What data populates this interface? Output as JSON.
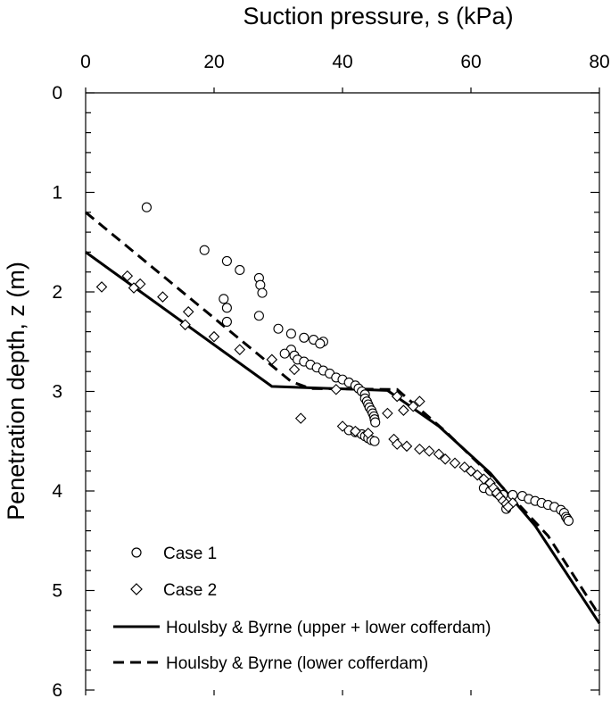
{
  "chart_data": {
    "type": "scatter",
    "title": "",
    "xlabel": "Suction pressure, s (kPa)",
    "ylabel": "Penetration depth, z (m)",
    "xlim": [
      0,
      80
    ],
    "ylim": [
      6,
      0
    ],
    "x_axis_position": "top",
    "y_axis_inverted": true,
    "grid": false,
    "legend_position": "bottom-left",
    "x_ticks": [
      0,
      20,
      40,
      60,
      80
    ],
    "y_ticks": [
      0,
      1,
      2,
      3,
      4,
      5,
      6
    ],
    "series": [
      {
        "name": "Case 1",
        "kind": "scatter",
        "marker": "circle",
        "points": [
          [
            9.5,
            1.15
          ],
          [
            18.5,
            1.58
          ],
          [
            22.0,
            1.69
          ],
          [
            24.0,
            1.78
          ],
          [
            27.0,
            1.86
          ],
          [
            27.2,
            1.93
          ],
          [
            27.5,
            2.01
          ],
          [
            21.5,
            2.07
          ],
          [
            22.0,
            2.16
          ],
          [
            22.0,
            2.3
          ],
          [
            27.0,
            2.24
          ],
          [
            30.0,
            2.37
          ],
          [
            32.0,
            2.42
          ],
          [
            34.0,
            2.46
          ],
          [
            35.5,
            2.48
          ],
          [
            37.0,
            2.5
          ],
          [
            36.5,
            2.52
          ],
          [
            32.0,
            2.58
          ],
          [
            31.0,
            2.62
          ],
          [
            32.5,
            2.64
          ],
          [
            33.0,
            2.68
          ],
          [
            34.0,
            2.7
          ],
          [
            35.0,
            2.73
          ],
          [
            36.0,
            2.76
          ],
          [
            37.0,
            2.79
          ],
          [
            38.0,
            2.82
          ],
          [
            39.0,
            2.86
          ],
          [
            40.0,
            2.88
          ],
          [
            41.0,
            2.91
          ],
          [
            42.0,
            2.94
          ],
          [
            42.5,
            2.97
          ],
          [
            43.0,
            3.0
          ],
          [
            43.5,
            3.03
          ],
          [
            43.5,
            3.07
          ],
          [
            43.8,
            3.1
          ],
          [
            44.0,
            3.13
          ],
          [
            44.2,
            3.16
          ],
          [
            44.5,
            3.19
          ],
          [
            44.7,
            3.22
          ],
          [
            44.9,
            3.25
          ],
          [
            45.0,
            3.28
          ],
          [
            45.1,
            3.31
          ],
          [
            41.0,
            3.39
          ],
          [
            42.0,
            3.41
          ],
          [
            43.0,
            3.43
          ],
          [
            43.5,
            3.45
          ],
          [
            44.0,
            3.47
          ],
          [
            44.5,
            3.49
          ],
          [
            45.0,
            3.5
          ],
          [
            62.0,
            3.97
          ],
          [
            63.0,
            4.0
          ],
          [
            64.0,
            4.02
          ],
          [
            65.0,
            4.04
          ],
          [
            66.5,
            4.04
          ],
          [
            68.0,
            4.05
          ],
          [
            69.0,
            4.08
          ],
          [
            70.0,
            4.1
          ],
          [
            71.0,
            4.12
          ],
          [
            72.0,
            4.14
          ],
          [
            73.0,
            4.16
          ],
          [
            74.0,
            4.19
          ],
          [
            74.5,
            4.22
          ],
          [
            74.8,
            4.26
          ],
          [
            75.0,
            4.28
          ],
          [
            75.2,
            4.3
          ],
          [
            65.5,
            4.18
          ]
        ]
      },
      {
        "name": "Case 2",
        "kind": "scatter",
        "marker": "diamond",
        "points": [
          [
            2.5,
            1.95
          ],
          [
            6.5,
            1.84
          ],
          [
            7.5,
            1.96
          ],
          [
            8.5,
            1.92
          ],
          [
            12.0,
            2.05
          ],
          [
            16.0,
            2.2
          ],
          [
            15.5,
            2.33
          ],
          [
            20.0,
            2.45
          ],
          [
            24.0,
            2.58
          ],
          [
            29.0,
            2.68
          ],
          [
            32.5,
            2.78
          ],
          [
            39.0,
            2.98
          ],
          [
            48.5,
            3.05
          ],
          [
            52.0,
            3.1
          ],
          [
            51.0,
            3.15
          ],
          [
            49.5,
            3.19
          ],
          [
            47.0,
            3.22
          ],
          [
            33.5,
            3.27
          ],
          [
            40.0,
            3.35
          ],
          [
            42.0,
            3.4
          ],
          [
            44.0,
            3.42
          ],
          [
            48.0,
            3.48
          ],
          [
            48.5,
            3.53
          ],
          [
            50.0,
            3.55
          ],
          [
            52.0,
            3.58
          ],
          [
            53.5,
            3.6
          ],
          [
            55.0,
            3.63
          ],
          [
            56.0,
            3.68
          ],
          [
            57.5,
            3.72
          ],
          [
            59.0,
            3.76
          ],
          [
            60.0,
            3.8
          ],
          [
            61.0,
            3.84
          ],
          [
            62.0,
            3.88
          ],
          [
            63.0,
            3.92
          ],
          [
            63.5,
            3.97
          ],
          [
            64.0,
            4.02
          ],
          [
            64.5,
            4.06
          ],
          [
            65.0,
            4.1
          ],
          [
            65.5,
            4.13
          ],
          [
            66.5,
            4.12
          ],
          [
            65.8,
            4.16
          ]
        ]
      },
      {
        "name": "Houlsby & Byrne (upper + lower cofferdam)",
        "kind": "line",
        "style": "solid",
        "points": [
          [
            0,
            1.6
          ],
          [
            29.0,
            2.95
          ],
          [
            47.0,
            2.99
          ],
          [
            55.0,
            3.35
          ],
          [
            63.0,
            3.82
          ],
          [
            70.0,
            4.35
          ],
          [
            80.0,
            5.33
          ]
        ]
      },
      {
        "name": "Houlsby & Byrne (lower cofferdam)",
        "kind": "line",
        "style": "dashed",
        "points": [
          [
            0,
            1.2
          ],
          [
            32.0,
            2.9
          ],
          [
            35.0,
            2.97
          ],
          [
            48.5,
            2.98
          ],
          [
            56.0,
            3.4
          ],
          [
            64.0,
            3.9
          ],
          [
            72.0,
            4.45
          ],
          [
            80.0,
            5.25
          ]
        ]
      }
    ]
  }
}
